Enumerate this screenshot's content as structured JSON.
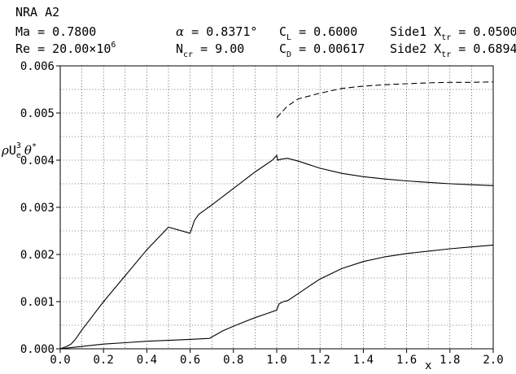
{
  "header": {
    "title": "NRA A2",
    "rows": [
      [
        {
          "base": "Ma = 0.7800",
          "sub": "",
          "tail": ""
        },
        {
          "base": "α",
          "sub": "",
          "tail": " = 0.8371°",
          "italic": true
        },
        {
          "base": "C",
          "sub": "L",
          "tail": " = 0.6000"
        },
        {
          "base": "Side1 X",
          "sub": "tr",
          "tail": " = 0.0500"
        }
      ],
      [
        {
          "base": "Re = 20.00×10",
          "sup": "6",
          "sub": "",
          "tail": ""
        },
        {
          "base": "N",
          "sub": "cr",
          "tail": " = 9.00"
        },
        {
          "base": "C",
          "sub": "D",
          "tail": " = 0.00617"
        },
        {
          "base": "Side2 X",
          "sub": "tr",
          "tail": " = 0.6894"
        }
      ]
    ]
  },
  "chart_data": {
    "type": "line",
    "title": "NRA A2",
    "xlabel": "x",
    "ylabel": "ρU_e^3 θ*",
    "xlim": [
      0.0,
      2.0
    ],
    "ylim": [
      0.0,
      0.006
    ],
    "x_ticks": [
      "0.0",
      "0.2",
      "0.4",
      "0.6",
      "0.8",
      "1.0",
      "1.2",
      "1.4",
      "1.6",
      "1.8",
      "2.0"
    ],
    "y_ticks": [
      "0.000",
      "0.001",
      "0.002",
      "0.003",
      "0.004",
      "0.005",
      "0.006"
    ],
    "grid": true,
    "series": [
      {
        "style": "solid",
        "points": [
          [
            0.0,
            0.0
          ],
          [
            0.03,
            5e-05
          ],
          [
            0.05,
            0.0001
          ],
          [
            0.07,
            0.0002
          ],
          [
            0.1,
            0.0004
          ],
          [
            0.15,
            0.0007
          ],
          [
            0.2,
            0.001
          ],
          [
            0.3,
            0.00155
          ],
          [
            0.4,
            0.0021
          ],
          [
            0.5,
            0.00258
          ],
          [
            0.6,
            0.00245
          ],
          [
            0.62,
            0.00272
          ],
          [
            0.64,
            0.00285
          ],
          [
            0.7,
            0.00305
          ],
          [
            0.8,
            0.0034
          ],
          [
            0.9,
            0.00375
          ],
          [
            0.98,
            0.004
          ],
          [
            1.0,
            0.0041
          ],
          [
            1.005,
            0.004
          ],
          [
            1.02,
            0.00402
          ],
          [
            1.05,
            0.00404
          ],
          [
            1.1,
            0.00398
          ],
          [
            1.2,
            0.00383
          ],
          [
            1.3,
            0.00372
          ],
          [
            1.4,
            0.00365
          ],
          [
            1.5,
            0.0036
          ],
          [
            1.6,
            0.00356
          ],
          [
            1.7,
            0.00353
          ],
          [
            1.8,
            0.0035
          ],
          [
            1.9,
            0.00348
          ],
          [
            2.0,
            0.00346
          ]
        ]
      },
      {
        "style": "dashed",
        "points": [
          [
            1.0,
            0.0049
          ],
          [
            1.02,
            0.005
          ],
          [
            1.05,
            0.00515
          ],
          [
            1.1,
            0.0053
          ],
          [
            1.2,
            0.00542
          ],
          [
            1.3,
            0.00552
          ],
          [
            1.4,
            0.00557
          ],
          [
            1.5,
            0.0056
          ],
          [
            1.6,
            0.00562
          ],
          [
            1.7,
            0.00564
          ],
          [
            1.8,
            0.00565
          ],
          [
            1.9,
            0.00565
          ],
          [
            2.0,
            0.00566
          ]
        ]
      },
      {
        "style": "solid",
        "points": [
          [
            0.0,
            0.0
          ],
          [
            0.1,
            5e-05
          ],
          [
            0.2,
            0.0001
          ],
          [
            0.3,
            0.00013
          ],
          [
            0.4,
            0.00016
          ],
          [
            0.5,
            0.00018
          ],
          [
            0.6,
            0.0002
          ],
          [
            0.69,
            0.00022
          ],
          [
            0.7,
            0.00025
          ],
          [
            0.72,
            0.0003
          ],
          [
            0.75,
            0.00038
          ],
          [
            0.8,
            0.00048
          ],
          [
            0.85,
            0.00057
          ],
          [
            0.9,
            0.00066
          ],
          [
            0.95,
            0.00074
          ],
          [
            1.0,
            0.00082
          ],
          [
            1.01,
            0.00095
          ],
          [
            1.03,
            0.001
          ],
          [
            1.05,
            0.00102
          ],
          [
            1.1,
            0.00117
          ],
          [
            1.15,
            0.00133
          ],
          [
            1.2,
            0.00148
          ],
          [
            1.3,
            0.0017
          ],
          [
            1.4,
            0.00185
          ],
          [
            1.5,
            0.00195
          ],
          [
            1.6,
            0.00202
          ],
          [
            1.7,
            0.00207
          ],
          [
            1.8,
            0.00212
          ],
          [
            1.9,
            0.00216
          ],
          [
            2.0,
            0.0022
          ]
        ]
      }
    ]
  }
}
